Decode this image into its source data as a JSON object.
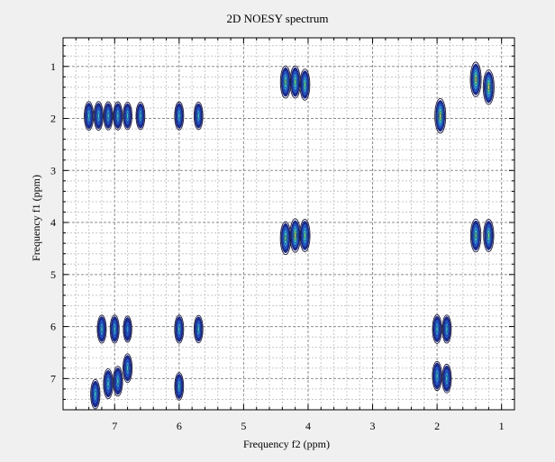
{
  "chart_data": {
    "type": "contour",
    "title": "2D NOESY spectrum",
    "xlabel": "Frequency f2 (ppm)",
    "ylabel": "Frequency f1 (ppm)",
    "xlim": [
      7.8,
      0.8
    ],
    "ylim": [
      0.45,
      7.6
    ],
    "x_axis_reversed": true,
    "y_axis_reversed": true,
    "grid": true,
    "x_ticks": [
      7,
      6,
      5,
      4,
      3,
      2,
      1
    ],
    "y_ticks": [
      1,
      2,
      3,
      4,
      5,
      6,
      7
    ],
    "peaks": [
      {
        "f2": 1.4,
        "f1": 1.25,
        "intensity": 1.0
      },
      {
        "f2": 1.2,
        "f1": 1.4,
        "intensity": 1.0
      },
      {
        "f2": 1.95,
        "f1": 1.95,
        "intensity": 1.0
      },
      {
        "f2": 4.35,
        "f1": 1.3,
        "intensity": 0.8
      },
      {
        "f2": 4.2,
        "f1": 1.3,
        "intensity": 0.8
      },
      {
        "f2": 4.05,
        "f1": 1.35,
        "intensity": 0.7
      },
      {
        "f2": 4.35,
        "f1": 4.3,
        "intensity": 0.85
      },
      {
        "f2": 4.2,
        "f1": 4.25,
        "intensity": 0.9
      },
      {
        "f2": 4.05,
        "f1": 4.25,
        "intensity": 0.8
      },
      {
        "f2": 1.4,
        "f1": 4.25,
        "intensity": 0.85
      },
      {
        "f2": 1.2,
        "f1": 4.25,
        "intensity": 0.8
      },
      {
        "f2": 7.4,
        "f1": 1.95,
        "intensity": 0.5
      },
      {
        "f2": 7.25,
        "f1": 1.95,
        "intensity": 0.5
      },
      {
        "f2": 7.1,
        "f1": 1.95,
        "intensity": 0.45
      },
      {
        "f2": 6.95,
        "f1": 1.95,
        "intensity": 0.45
      },
      {
        "f2": 6.8,
        "f1": 1.95,
        "intensity": 0.4
      },
      {
        "f2": 6.6,
        "f1": 1.95,
        "intensity": 0.4
      },
      {
        "f2": 6.0,
        "f1": 1.95,
        "intensity": 0.45
      },
      {
        "f2": 5.7,
        "f1": 1.95,
        "intensity": 0.4
      },
      {
        "f2": 7.2,
        "f1": 6.05,
        "intensity": 0.45
      },
      {
        "f2": 7.0,
        "f1": 6.05,
        "intensity": 0.45
      },
      {
        "f2": 6.8,
        "f1": 6.05,
        "intensity": 0.3
      },
      {
        "f2": 6.0,
        "f1": 6.05,
        "intensity": 0.45
      },
      {
        "f2": 5.7,
        "f1": 6.05,
        "intensity": 0.4
      },
      {
        "f2": 2.0,
        "f1": 6.05,
        "intensity": 0.5
      },
      {
        "f2": 1.85,
        "f1": 6.05,
        "intensity": 0.45
      },
      {
        "f2": 7.3,
        "f1": 7.3,
        "intensity": 0.55
      },
      {
        "f2": 7.1,
        "f1": 7.1,
        "intensity": 0.6
      },
      {
        "f2": 6.95,
        "f1": 7.05,
        "intensity": 0.6
      },
      {
        "f2": 6.8,
        "f1": 6.8,
        "intensity": 0.5
      },
      {
        "f2": 6.0,
        "f1": 7.15,
        "intensity": 0.4
      },
      {
        "f2": 2.0,
        "f1": 6.95,
        "intensity": 0.55
      },
      {
        "f2": 1.85,
        "f1": 7.0,
        "intensity": 0.5
      }
    ]
  }
}
